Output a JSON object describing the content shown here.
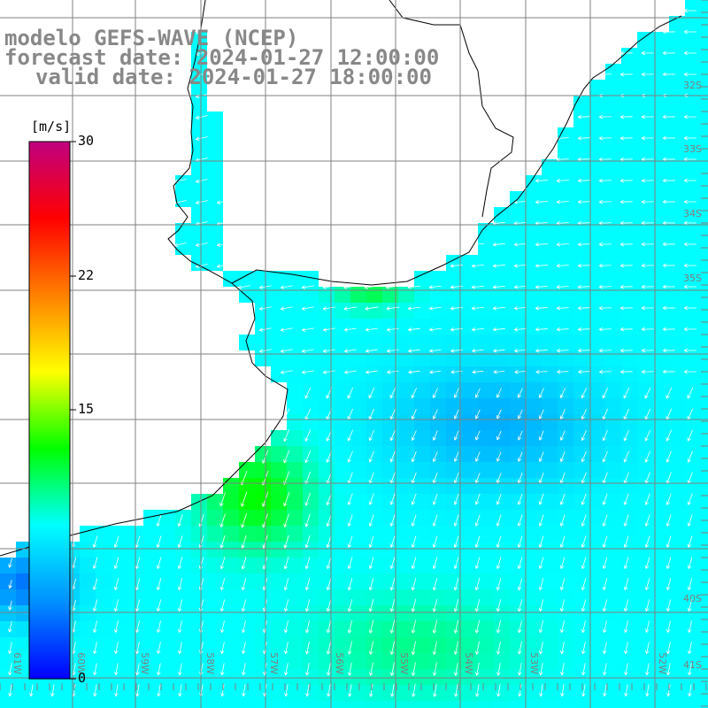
{
  "header": {
    "model": "modelo GEFS-WAVE (NCEP)",
    "forecast": "forecast date: 2024-01-27 12:00:00",
    "valid": "valid date: 2024-01-27 18:00:00"
  },
  "colorbar": {
    "unit": "[m/s]",
    "ticks": [
      "30",
      "22",
      "15",
      "0"
    ],
    "min": 0,
    "max": 30,
    "colors": [
      "#0000ff",
      "#0090ff",
      "#00ffff",
      "#00ff00",
      "#ffff00",
      "#ff8000",
      "#ff0000",
      "#c00080"
    ]
  },
  "grid": {
    "lat_labels": [
      "32S",
      "33S",
      "34S",
      "35S",
      "40S",
      "41S"
    ],
    "lon_labels": [
      "61W",
      "60W",
      "59W",
      "58W",
      "57W",
      "56W",
      "55W",
      "54W",
      "53W",
      "52W"
    ]
  },
  "colors": {
    "background": "#ffffff",
    "title": "#888888",
    "vector": "#ffffff",
    "coast": "#000000",
    "grid": "#808080"
  }
}
